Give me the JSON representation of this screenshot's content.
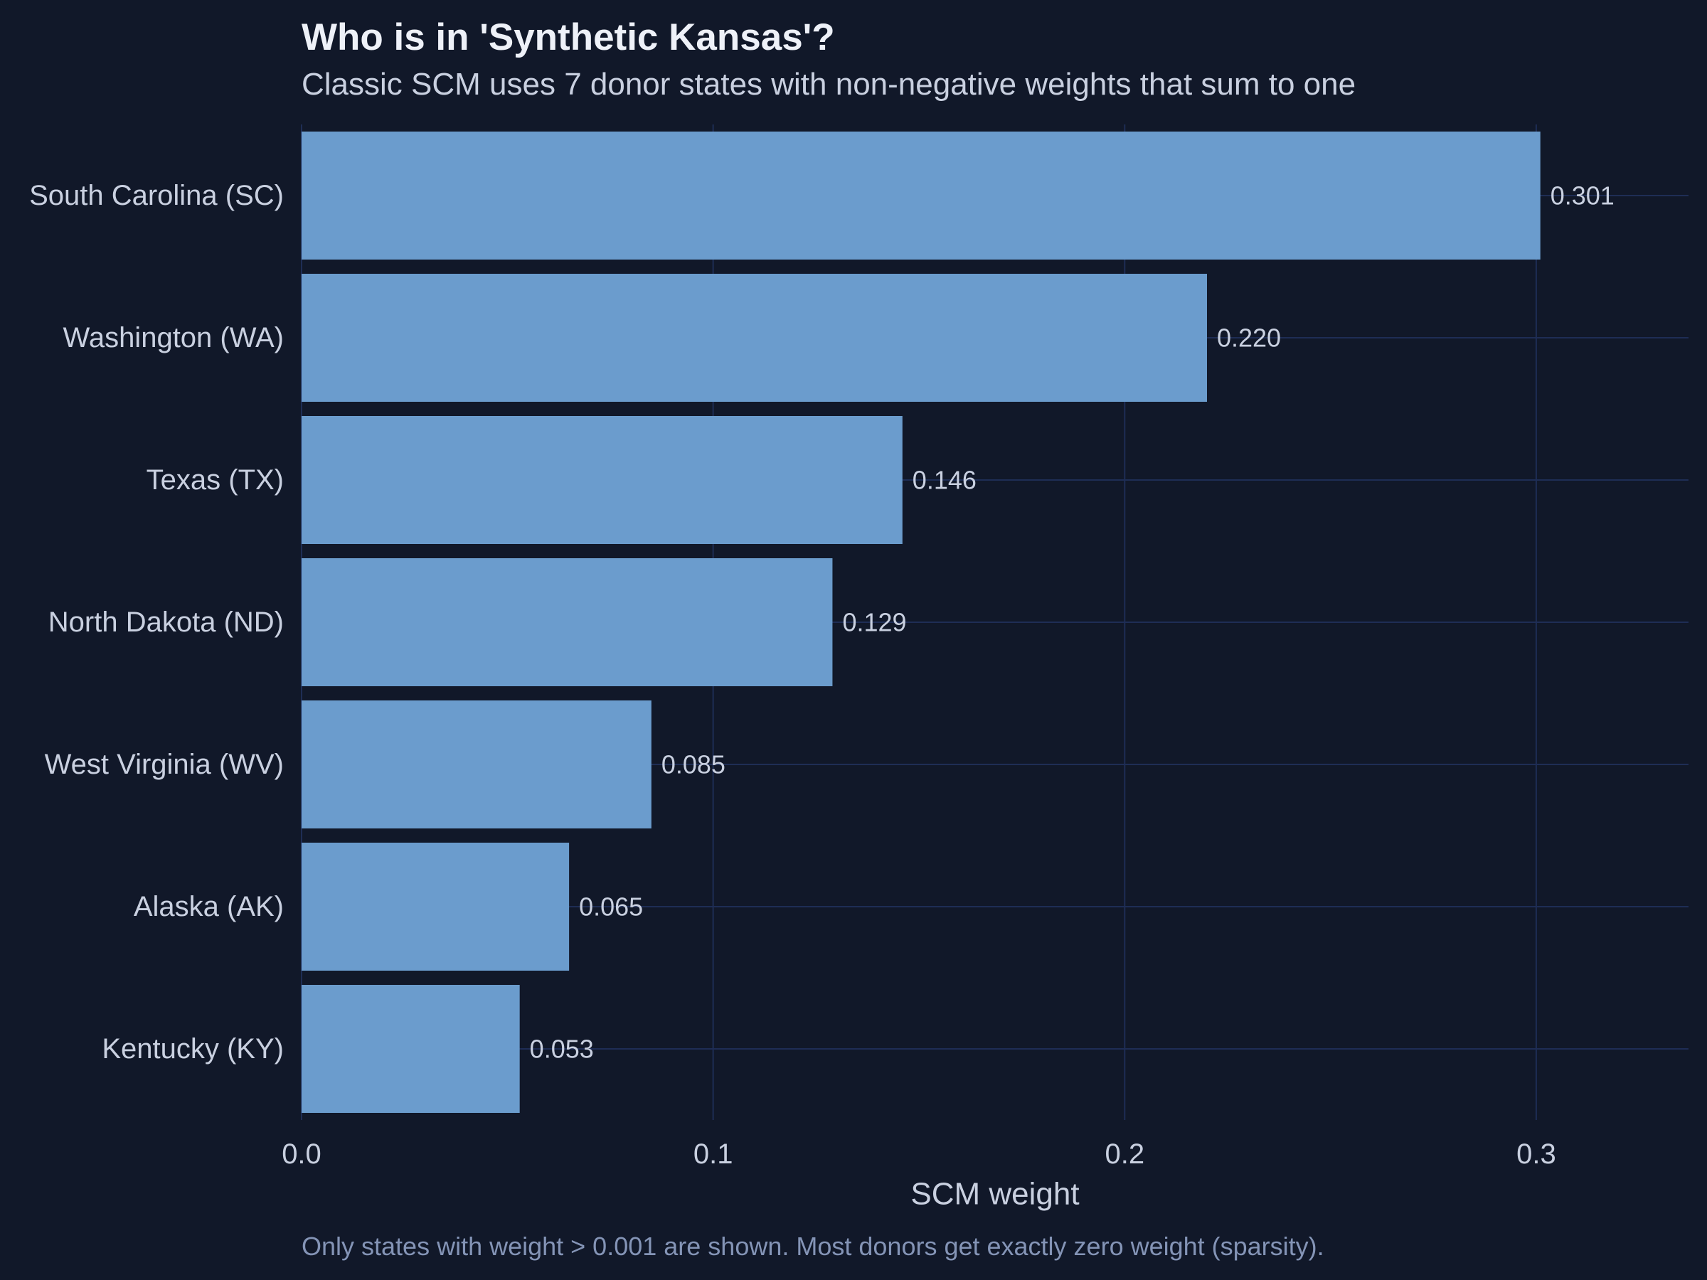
{
  "chart_data": {
    "type": "bar",
    "orientation": "horizontal",
    "title": "Who is in 'Synthetic Kansas'?",
    "subtitle": "Classic SCM uses 7 donor states with non-negative weights that sum to one",
    "caption": "Only states with weight > 0.001 are shown. Most donors get exactly zero weight (sparsity).",
    "xlabel": "SCM weight",
    "ylabel": "",
    "categories": [
      "South Carolina (SC)",
      "Washington (WA)",
      "Texas (TX)",
      "North Dakota (ND)",
      "West Virginia (WV)",
      "Alaska (AK)",
      "Kentucky (KY)"
    ],
    "values": [
      0.301,
      0.22,
      0.146,
      0.129,
      0.085,
      0.065,
      0.053
    ],
    "value_labels": [
      "0.301",
      "0.220",
      "0.146",
      "0.129",
      "0.085",
      "0.065",
      "0.053"
    ],
    "xlim": [
      0,
      0.337
    ],
    "xticks": [
      0,
      0.1,
      0.2,
      0.3
    ],
    "xtick_labels": [
      "0.0",
      "0.1",
      "0.2",
      "0.3"
    ],
    "grid": true,
    "legend": "none",
    "colors": {
      "background": "#111829",
      "bar": "#6b9ccd",
      "grid": "#1e2d55",
      "text": "#c9d0e0",
      "title": "#eef1f8",
      "caption": "#8494b6"
    }
  }
}
